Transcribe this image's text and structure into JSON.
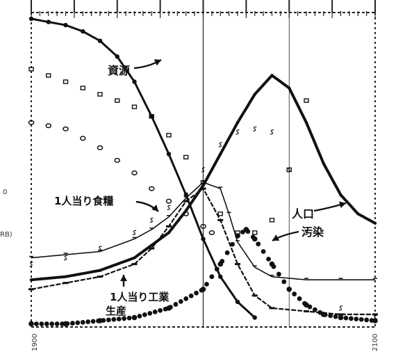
{
  "chart_data": {
    "type": "line",
    "x_start_label": "1900",
    "x_end_label": "2100",
    "xlim": [
      1900,
      2100
    ],
    "ylim": [
      0,
      1
    ],
    "grid": "vertical lines at 2000, 2050",
    "edge_fragments": [
      "0",
      "RB)"
    ],
    "series": [
      {
        "name": "資源",
        "style": "thick solid line with large dots",
        "x": [
          1900,
          1910,
          1920,
          1930,
          1940,
          1950,
          1960,
          1970,
          1980,
          1990,
          2000,
          2010,
          2020,
          2030
        ],
        "values": [
          0.98,
          0.97,
          0.96,
          0.94,
          0.91,
          0.86,
          0.78,
          0.67,
          0.55,
          0.42,
          0.28,
          0.16,
          0.08,
          0.03
        ]
      },
      {
        "name": "1人当り食糧",
        "style": "thin solid line with dash marks",
        "x": [
          1900,
          1920,
          1940,
          1960,
          1970,
          1980,
          1990,
          2000,
          2010,
          2015,
          2020,
          2030,
          2040,
          2060,
          2080,
          2100
        ],
        "values": [
          0.22,
          0.23,
          0.24,
          0.28,
          0.31,
          0.35,
          0.41,
          0.46,
          0.44,
          0.36,
          0.27,
          0.19,
          0.16,
          0.15,
          0.15,
          0.15
        ]
      },
      {
        "name": "1人当り工業生産",
        "style": "solid line with hyphen marks",
        "x": [
          1900,
          1920,
          1940,
          1960,
          1970,
          1980,
          1990,
          2000,
          2010,
          2020,
          2030,
          2040,
          2060,
          2080,
          2100
        ],
        "values": [
          0.12,
          0.14,
          0.16,
          0.2,
          0.25,
          0.32,
          0.4,
          0.44,
          0.34,
          0.2,
          0.1,
          0.06,
          0.05,
          0.04,
          0.04
        ]
      },
      {
        "name": "人口",
        "style": "very thick solid line",
        "x": [
          1900,
          1920,
          1940,
          1960,
          1980,
          1990,
          2000,
          2010,
          2020,
          2030,
          2040,
          2050,
          2060,
          2070,
          2080,
          2090,
          2100
        ],
        "values": [
          0.15,
          0.16,
          0.18,
          0.22,
          0.3,
          0.37,
          0.45,
          0.55,
          0.65,
          0.74,
          0.8,
          0.76,
          0.65,
          0.52,
          0.42,
          0.36,
          0.33
        ]
      },
      {
        "name": "汚染",
        "style": "dotted beads",
        "x": [
          1900,
          1920,
          1940,
          1960,
          1980,
          2000,
          2010,
          2020,
          2025,
          2030,
          2040,
          2050,
          2060,
          2070,
          2080,
          2100
        ],
        "values": [
          0.01,
          0.01,
          0.02,
          0.03,
          0.06,
          0.12,
          0.2,
          0.29,
          0.31,
          0.28,
          0.2,
          0.12,
          0.07,
          0.04,
          0.03,
          0.02
        ]
      },
      {
        "name": "",
        "style": "open squares (unlabeled)",
        "x": [
          1900,
          1910,
          1920,
          1930,
          1940,
          1950,
          1960,
          1970,
          1980,
          1990,
          2000,
          2010,
          2020,
          2030,
          2040,
          2050,
          2060
        ],
        "values": [
          0.82,
          0.8,
          0.78,
          0.76,
          0.74,
          0.72,
          0.7,
          0.67,
          0.61,
          0.54,
          0.46,
          0.36,
          0.3,
          0.3,
          0.34,
          0.5,
          0.72
        ]
      },
      {
        "name": "",
        "style": "open circles (unlabeled)",
        "x": [
          1900,
          1910,
          1920,
          1930,
          1940,
          1950,
          1960,
          1970,
          1980,
          1990,
          2000,
          2005
        ],
        "values": [
          0.65,
          0.64,
          0.63,
          0.6,
          0.57,
          0.53,
          0.49,
          0.44,
          0.4,
          0.36,
          0.32,
          0.3
        ]
      },
      {
        "name": "",
        "style": "S-marks (unlabeled)",
        "x": [
          1900,
          1920,
          1940,
          1960,
          1970,
          1980,
          1990,
          2000,
          2010,
          2020,
          2030,
          2040,
          2050,
          2060,
          2080,
          2100
        ],
        "values": [
          0.2,
          0.22,
          0.25,
          0.3,
          0.34,
          0.38,
          0.42,
          0.5,
          0.58,
          0.62,
          0.63,
          0.62,
          0.5,
          0.3,
          0.06,
          0.03
        ]
      }
    ],
    "labels": {
      "resource": "資源",
      "food": "1人当り食糧",
      "industry_line1": "1人当り工業",
      "industry_line2": "生産",
      "population": "人口",
      "pollution": "汚染"
    }
  }
}
